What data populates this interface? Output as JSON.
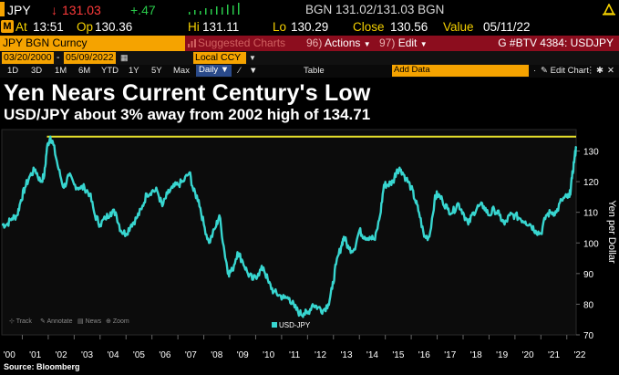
{
  "quote": {
    "ticker": "JPY",
    "change_arrow": "↓",
    "last": "131.03",
    "change": "+.47",
    "bid_ask": "BGN 131.02/131.03 BGN"
  },
  "row2": {
    "badge": "M",
    "at_label": "At",
    "at_time": "13:51",
    "open_label": "Op",
    "open": "130.36",
    "hi_label": "Hi",
    "hi": "131.11",
    "lo_label": "Lo",
    "lo": "130.29",
    "close_label": "Close",
    "close": "130.56",
    "value_label": "Value",
    "value_date": "05/11/22"
  },
  "function_bar": {
    "security": "JPY BGN Curncy",
    "suggested": "Suggested Charts",
    "actions_num": "96)",
    "actions": "Actions",
    "edit_num": "97)",
    "edit": "Edit",
    "chart_id": "G #BTV 4384: USDJPY"
  },
  "date_row": {
    "start": "03/20/2000",
    "end": "05/09/2022",
    "ccy": "Local CCY"
  },
  "period_row": {
    "periods": [
      "1D",
      "3D",
      "1M",
      "6M",
      "YTD",
      "1Y",
      "5Y",
      "Max"
    ],
    "frequency": "Daily",
    "table": "Table",
    "add_data": "Add Data",
    "edit_chart": "Edit Chart"
  },
  "title": "Yen Nears Current Century's Low",
  "subtitle": "USD/JPY about 3% away from 2002 high of 134.71",
  "toolbar": {
    "track": "Track",
    "annotate": "Annotate",
    "news": "News",
    "zoom": "Zoom"
  },
  "source": "Source: Bloomberg",
  "colors": {
    "series": "#38d6d0",
    "reference": "#e8e22c",
    "accent": "#f5a300",
    "red_bar": "#8c0d1e"
  },
  "chart_data": {
    "type": "line",
    "ylabel": "Yen per Dollar",
    "ylim": [
      70,
      137
    ],
    "yticks": [
      70,
      80,
      90,
      100,
      110,
      120,
      130
    ],
    "xticks": [
      "'00",
      "'01",
      "'02",
      "'03",
      "'04",
      "'05",
      "'06",
      "'07",
      "'08",
      "'09",
      "'10",
      "'11",
      "'12",
      "'13",
      "'14",
      "'15",
      "'16",
      "'17",
      "'18",
      "'19",
      "'20",
      "'21",
      "'22"
    ],
    "xlim": [
      2000.21,
      2022.36
    ],
    "reference_line": 134.71,
    "series": [
      {
        "name": "USD-JPY",
        "x": [
          2000.21,
          2000.4,
          2000.6,
          2000.8,
          2000.95,
          2001.1,
          2001.3,
          2001.5,
          2001.7,
          2001.85,
          2001.95,
          2002.08,
          2002.2,
          2002.4,
          2002.6,
          2002.8,
          2003.0,
          2003.2,
          2003.4,
          2003.6,
          2003.8,
          2004.0,
          2004.2,
          2004.4,
          2004.6,
          2004.8,
          2005.0,
          2005.2,
          2005.4,
          2005.6,
          2005.8,
          2006.0,
          2006.2,
          2006.4,
          2006.6,
          2006.8,
          2007.0,
          2007.2,
          2007.45,
          2007.6,
          2007.8,
          2008.0,
          2008.2,
          2008.45,
          2008.6,
          2008.8,
          2008.95,
          2009.1,
          2009.3,
          2009.5,
          2009.7,
          2009.9,
          2010.1,
          2010.3,
          2010.5,
          2010.7,
          2010.9,
          2011.1,
          2011.3,
          2011.5,
          2011.7,
          2011.85,
          2012.0,
          2012.2,
          2012.4,
          2012.6,
          2012.8,
          2012.95,
          2013.1,
          2013.3,
          2013.4,
          2013.6,
          2013.8,
          2014.0,
          2014.2,
          2014.4,
          2014.6,
          2014.8,
          2014.95,
          2015.1,
          2015.3,
          2015.45,
          2015.6,
          2015.8,
          2016.0,
          2016.15,
          2016.3,
          2016.5,
          2016.7,
          2016.9,
          2017.0,
          2017.2,
          2017.4,
          2017.6,
          2017.8,
          2018.0,
          2018.2,
          2018.4,
          2018.6,
          2018.8,
          2019.0,
          2019.2,
          2019.4,
          2019.6,
          2019.8,
          2020.0,
          2020.2,
          2020.4,
          2020.6,
          2020.8,
          2021.0,
          2021.2,
          2021.4,
          2021.6,
          2021.8,
          2022.0,
          2022.1,
          2022.2,
          2022.3,
          2022.36
        ],
        "values": [
          106,
          106,
          108,
          109,
          114,
          118,
          122,
          124,
          120,
          122,
          131,
          134.7,
          132,
          124,
          118,
          122,
          119,
          118,
          118,
          116,
          109,
          106,
          108,
          110,
          110,
          104,
          103,
          106,
          108,
          111,
          116,
          117,
          117,
          112,
          116,
          118,
          119,
          120,
          123,
          117,
          114,
          106,
          100,
          105,
          109,
          97,
          90,
          91,
          97,
          94,
          90,
          88,
          90,
          92,
          87,
          84,
          83,
          82,
          82,
          79,
          77,
          77,
          77,
          80,
          79,
          78,
          80,
          85,
          93,
          99,
          102,
          98,
          98,
          104,
          102,
          102,
          101,
          109,
          119,
          119,
          120,
          124,
          124,
          121,
          118,
          114,
          110,
          102,
          102,
          114,
          116,
          114,
          111,
          110,
          113,
          110,
          106,
          110,
          112,
          112,
          109,
          111,
          109,
          106,
          109,
          109,
          108,
          107,
          106,
          104,
          103,
          109,
          110,
          110,
          114,
          115,
          115,
          121,
          128,
          131
        ]
      }
    ]
  }
}
